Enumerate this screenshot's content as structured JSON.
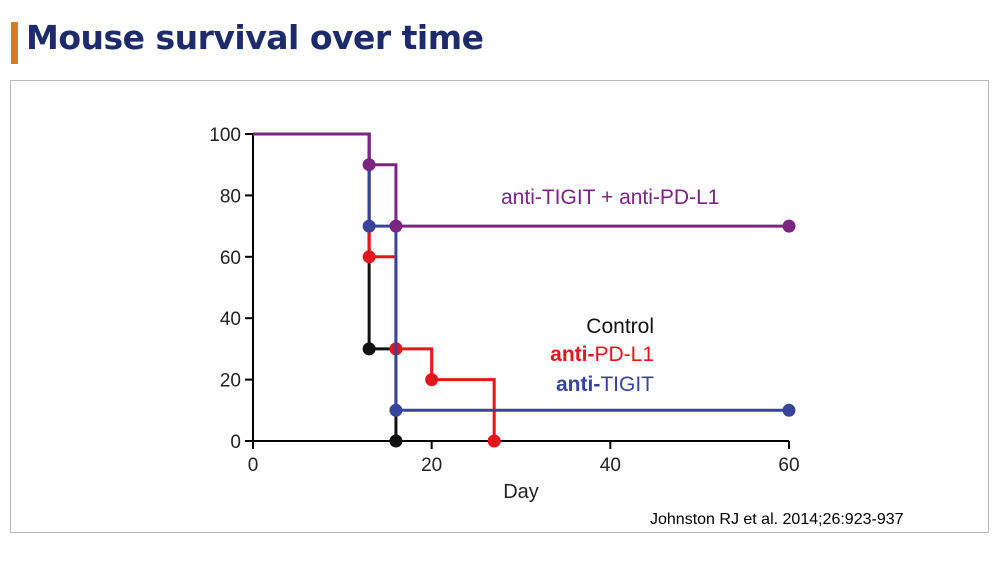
{
  "page": {
    "title": "Mouse survival over time",
    "citation": "Johnston RJ et al. 2014;26:923-937",
    "accent_color": "#e07a1f",
    "title_color": "#1d2a6b"
  },
  "chart_data": {
    "type": "line",
    "step": true,
    "xlabel": "Day",
    "ylabel": "",
    "xlim": [
      0,
      60
    ],
    "ylim": [
      0,
      100
    ],
    "xticks": [
      0,
      20,
      40,
      60
    ],
    "yticks": [
      0,
      20,
      40,
      60,
      80,
      100
    ],
    "grid": false,
    "series": [
      {
        "name": "Control",
        "color": "#111111",
        "label_bold": false,
        "points": [
          [
            0,
            100
          ],
          [
            13,
            30
          ],
          [
            16,
            0
          ]
        ]
      },
      {
        "name": "anti-PD-L1",
        "color": "#e8141b",
        "label_bold": true,
        "label_bold_prefix": "anti-",
        "points": [
          [
            0,
            100
          ],
          [
            13,
            60
          ],
          [
            16,
            30
          ],
          [
            20,
            20
          ],
          [
            27,
            0
          ]
        ]
      },
      {
        "name": "anti-TIGIT",
        "color": "#37449a",
        "label_bold": true,
        "label_bold_prefix": "anti-",
        "points": [
          [
            0,
            100
          ],
          [
            13,
            70
          ],
          [
            16,
            10
          ],
          [
            60,
            10
          ]
        ]
      },
      {
        "name": "anti-TIGIT + anti-PD-L1",
        "color": "#7a2580",
        "label_bold": false,
        "points": [
          [
            0,
            100
          ],
          [
            13,
            90
          ],
          [
            16,
            70
          ],
          [
            60,
            70
          ]
        ]
      }
    ]
  }
}
